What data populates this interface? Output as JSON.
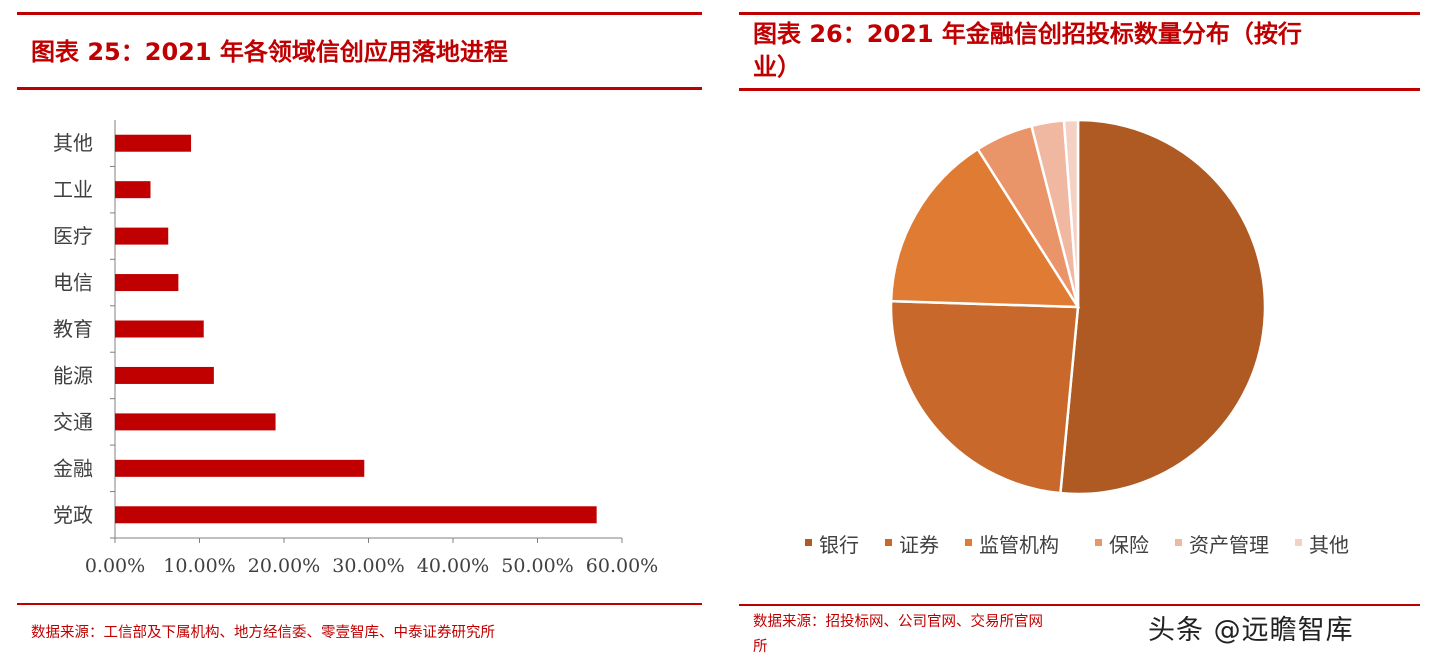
{
  "left": {
    "title": "图表 25：2021 年各领域信创应用落地进程",
    "source": "数据来源：工信部及下属机构、地方经信委、零壹智库、中泰证券研究所"
  },
  "right": {
    "title_line1": "图表 26：2021 年金融信创招投标数量分布（按行",
    "title_line2": "业）",
    "source_line1": "数据来源：招投标网、公司官网、交易所官网",
    "source_line2": "所"
  },
  "watermark": "头条 @远瞻智库",
  "colors": {
    "accent": "#c00000",
    "bar": "#c00000"
  },
  "chart_data": [
    {
      "type": "bar",
      "orientation": "horizontal",
      "categories": [
        "党政",
        "金融",
        "交通",
        "能源",
        "教育",
        "电信",
        "医疗",
        "工业",
        "其他"
      ],
      "values": [
        0.57,
        0.295,
        0.19,
        0.117,
        0.105,
        0.075,
        0.063,
        0.042,
        0.09
      ],
      "xlim": [
        0,
        0.6
      ],
      "xticks": [
        "0.00%",
        "10.00%",
        "20.00%",
        "30.00%",
        "40.00%",
        "50.00%",
        "60.00%"
      ],
      "grid": false
    },
    {
      "type": "pie",
      "labels": [
        "银行",
        "证券",
        "监管机构",
        "保险",
        "资产管理",
        "其他"
      ],
      "values": [
        51.5,
        24.0,
        15.5,
        5.0,
        2.8,
        1.2
      ],
      "colors": [
        "#b05a23",
        "#c8692b",
        "#e07b33",
        "#ea9469",
        "#f0b8a0",
        "#f5d0c5"
      ],
      "legend_position": "bottom"
    }
  ]
}
